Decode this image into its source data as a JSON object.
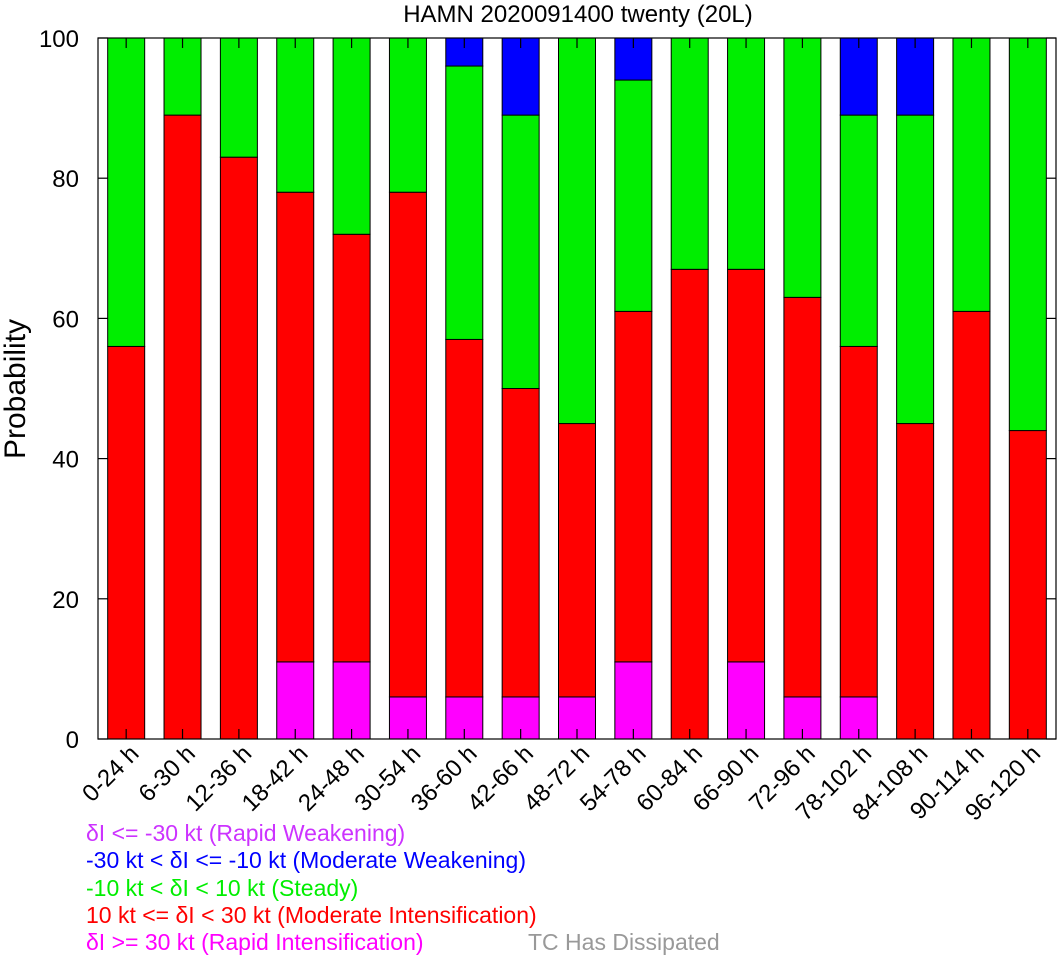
{
  "chart_data": {
    "type": "bar",
    "stacked": true,
    "title": "HAMN 2020091400 twenty (20L)",
    "xlabel": "",
    "ylabel": "Probability",
    "ylim": [
      0,
      100
    ],
    "yticks": [
      "0",
      "20",
      "40",
      "60",
      "80",
      "100"
    ],
    "categories": [
      "0-24 h",
      "6-30 h",
      "12-36 h",
      "18-42 h",
      "24-48 h",
      "30-54 h",
      "36-60 h",
      "42-66 h",
      "48-72 h",
      "54-78 h",
      "60-84 h",
      "66-90 h",
      "72-96 h",
      "78-102 h",
      "84-108 h",
      "90-114 h",
      "96-120 h"
    ],
    "series": [
      {
        "name": "δI <= -30 kt (Rapid Weakening)",
        "color": "#cc33ff",
        "values": [
          0,
          0,
          0,
          0,
          0,
          0,
          0,
          0,
          0,
          0,
          0,
          0,
          0,
          0,
          0,
          0,
          0
        ]
      },
      {
        "name": "-30 kt < δI <= -10 kt (Moderate Weakening)",
        "color": "#0000ff",
        "values": [
          0,
          0,
          0,
          0,
          0,
          0,
          4,
          11,
          0,
          6,
          0,
          0,
          0,
          11,
          11,
          0,
          0
        ]
      },
      {
        "name": "-10 kt < δI < 10 kt (Steady)",
        "color": "#00ee00",
        "values": [
          44,
          11,
          17,
          22,
          28,
          22,
          39,
          39,
          55,
          33,
          33,
          33,
          37,
          33,
          44,
          39,
          56
        ]
      },
      {
        "name": "10 kt <= δI < 30 kt (Moderate Intensification)",
        "color": "#ff0000",
        "values": [
          56,
          89,
          83,
          67,
          61,
          72,
          51,
          44,
          39,
          50,
          67,
          56,
          57,
          50,
          45,
          61,
          44
        ]
      },
      {
        "name": "δI >= 30 kt (Rapid Intensification)",
        "color": "#ff00ff",
        "values": [
          0,
          0,
          0,
          11,
          11,
          6,
          6,
          6,
          6,
          11,
          0,
          11,
          6,
          6,
          0,
          0,
          0
        ]
      }
    ],
    "stack_order_bottom_to_top": [
      "δI >= 30 kt (Rapid Intensification)",
      "10 kt <= δI < 30 kt (Moderate Intensification)",
      "-10 kt < δI < 10 kt (Steady)",
      "-30 kt < δI <= -10 kt (Moderate Weakening)",
      "δI <= -30 kt (Rapid Weakening)"
    ],
    "legend_placement": "bottom-left",
    "grid": false
  },
  "legend": {
    "dissipated_label": "TC Has Dissipated",
    "dissipated_color": "#999999"
  }
}
